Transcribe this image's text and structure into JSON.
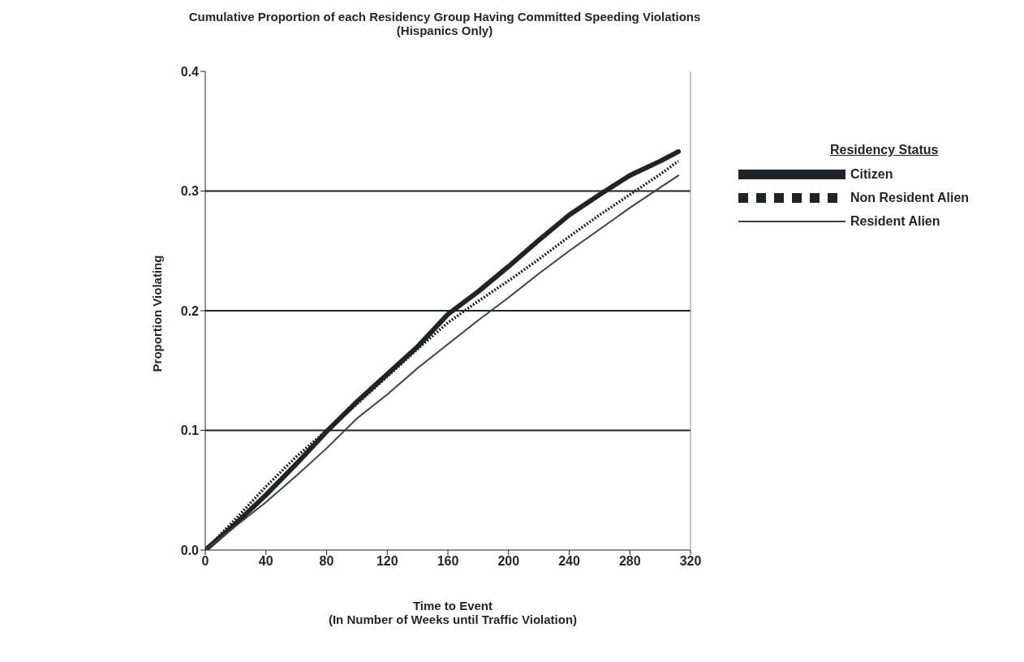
{
  "chart_data": {
    "type": "line",
    "title": "Cumulative Proportion of each Residency Group Having Committed Speeding Violations (Hispanics Only)",
    "xlabel": "Time to Event\n(In Number of Weeks until Traffic Violation)",
    "ylabel": "Proportion Violating",
    "legend_title": "Residency Status",
    "legend": "right",
    "grid": "y",
    "marker": "none",
    "xlim": [
      0,
      320
    ],
    "xticks": [
      0,
      40,
      80,
      120,
      160,
      200,
      240,
      280,
      320
    ],
    "ylim": [
      0,
      0.4
    ],
    "yticks": [
      {
        "value": 0,
        "label": "0.0"
      },
      {
        "value": 0.1,
        "label": "0.1"
      },
      {
        "value": 0.2,
        "label": "0.2"
      },
      {
        "value": 0.3,
        "label": "0.3"
      },
      {
        "value": 0.4,
        "label": "0.4"
      }
    ],
    "x": [
      0,
      20,
      40,
      60,
      80,
      100,
      120,
      140,
      160,
      180,
      200,
      220,
      240,
      260,
      280,
      300,
      312
    ],
    "series": [
      {
        "name": "Citizen",
        "color": "#1e2528",
        "line_style": "solid",
        "values": [
          0,
          0.022,
          0.046,
          0.072,
          0.099,
          0.124,
          0.147,
          0.17,
          0.197,
          0.216,
          0.237,
          0.259,
          0.28,
          0.297,
          0.313,
          0.325,
          0.333
        ]
      },
      {
        "name": "Non Resident Alien",
        "color": "#1e2528",
        "line_style": "dotted",
        "values": [
          0,
          0.026,
          0.053,
          0.078,
          0.1,
          0.122,
          0.145,
          0.168,
          0.19,
          0.208,
          0.225,
          0.243,
          0.262,
          0.28,
          0.297,
          0.314,
          0.325
        ]
      },
      {
        "name": "Resident Alien",
        "color": "#3a4245",
        "line_style": "solid",
        "values": [
          0,
          0.02,
          0.04,
          0.062,
          0.085,
          0.11,
          0.13,
          0.152,
          0.172,
          0.192,
          0.211,
          0.231,
          0.25,
          0.268,
          0.286,
          0.303,
          0.313
        ]
      }
    ]
  }
}
